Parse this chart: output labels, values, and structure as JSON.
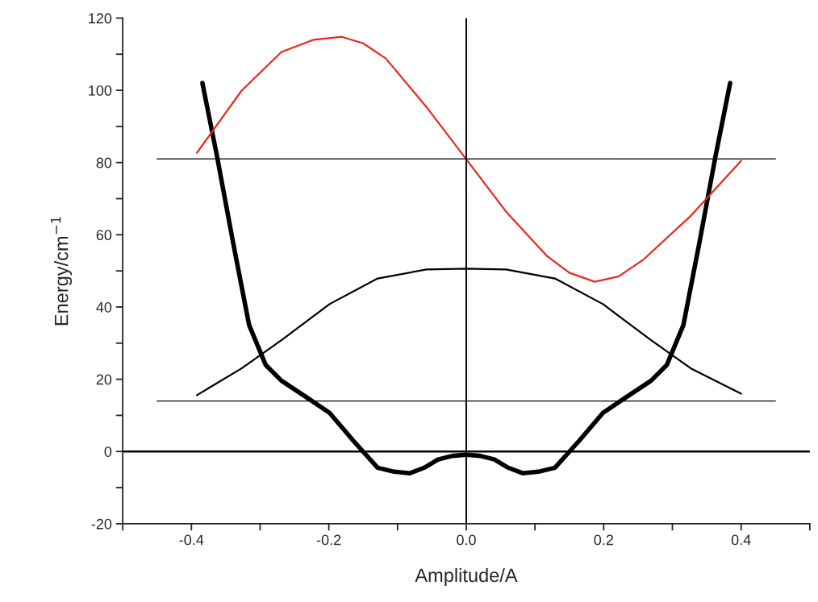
{
  "chart_data": {
    "type": "line",
    "xlabel": "Amplitude/A",
    "ylabel": "Energy/cm$^{−1}$",
    "xlim": [
      -0.5,
      0.5
    ],
    "ylim": [
      -20,
      120
    ],
    "xticks": [
      {
        "value": -0.5,
        "label": null
      },
      -0.4,
      {
        "value": -0.3,
        "label": null
      },
      -0.2,
      {
        "value": -0.1,
        "label": null
      },
      {
        "value": 0,
        "label": "0.0"
      },
      {
        "value": 0.1,
        "label": null
      },
      0.2,
      {
        "value": 0.3,
        "label": null
      },
      0.4,
      {
        "value": 0.5,
        "label": null
      }
    ],
    "yticks": [
      -20,
      {
        "value": -10,
        "label": null
      },
      0,
      {
        "value": 10,
        "label": null
      },
      20,
      {
        "value": 30,
        "label": null
      },
      40,
      {
        "value": 50,
        "label": null
      },
      60,
      {
        "value": 70,
        "label": null
      },
      80,
      {
        "value": 90,
        "label": null
      },
      100,
      {
        "value": 110,
        "label": null
      },
      120
    ],
    "grid": false,
    "legend": false,
    "series": [
      {
        "color": "#000000",
        "x": [
          -0.384,
          -0.363,
          -0.339,
          -0.316,
          -0.292,
          -0.269,
          -0.234,
          -0.199,
          -0.164,
          -0.129,
          -0.105,
          -0.082,
          -0.06,
          -0.041,
          -0.02,
          0,
          0.02,
          0.041,
          0.06,
          0.082,
          0.105,
          0.129,
          0.164,
          0.199,
          0.234,
          0.269,
          0.292,
          0.316,
          0.339,
          0.363,
          0.384
        ],
        "values": [
          102,
          82,
          57.5,
          35,
          24,
          19.6,
          15.2,
          10.7,
          2.9,
          -4.5,
          -5.6,
          -6,
          -4.4,
          -2.2,
          -1.2,
          -0.9,
          -1.2,
          -2.2,
          -4.4,
          -6,
          -5.6,
          -4.5,
          2.9,
          10.7,
          15.2,
          19.6,
          24,
          35,
          57.5,
          82,
          102
        ]
      },
      {
        "color": "#000000",
        "x": [
          -0.392,
          -0.327,
          -0.269,
          -0.199,
          -0.129,
          -0.058,
          0,
          0.058,
          0.129,
          0.199,
          0.269,
          0.327,
          0.4
        ],
        "values": [
          15.6,
          23,
          30.8,
          40.8,
          47.9,
          50.4,
          50.6,
          50.4,
          47.9,
          40.8,
          30.8,
          23,
          16
        ]
      },
      {
        "color": "#e8281e",
        "x": [
          -0.392,
          -0.327,
          -0.269,
          -0.222,
          -0.181,
          -0.15,
          -0.117,
          -0.058,
          0,
          0.058,
          0.117,
          0.15,
          0.187,
          0.222,
          0.257,
          0.327,
          0.4
        ],
        "values": [
          82.7,
          99.9,
          110.6,
          114,
          114.8,
          113,
          108.8,
          95.4,
          80.9,
          66.4,
          54.2,
          49.5,
          47,
          48.5,
          53,
          65.3,
          80.5
        ]
      },
      {
        "color": "#000000",
        "x": [
          -0.45,
          0.45
        ],
        "values": [
          81,
          81
        ]
      },
      {
        "color": "#000000",
        "x": [
          -0.45,
          0.45
        ],
        "values": [
          14,
          14
        ]
      },
      {
        "color": "#000000",
        "x": [
          -0.5,
          0.5
        ],
        "values": [
          0,
          0
        ]
      },
      {
        "color": "#000000",
        "x": [
          0,
          0
        ],
        "values": [
          -20,
          120
        ]
      }
    ]
  }
}
